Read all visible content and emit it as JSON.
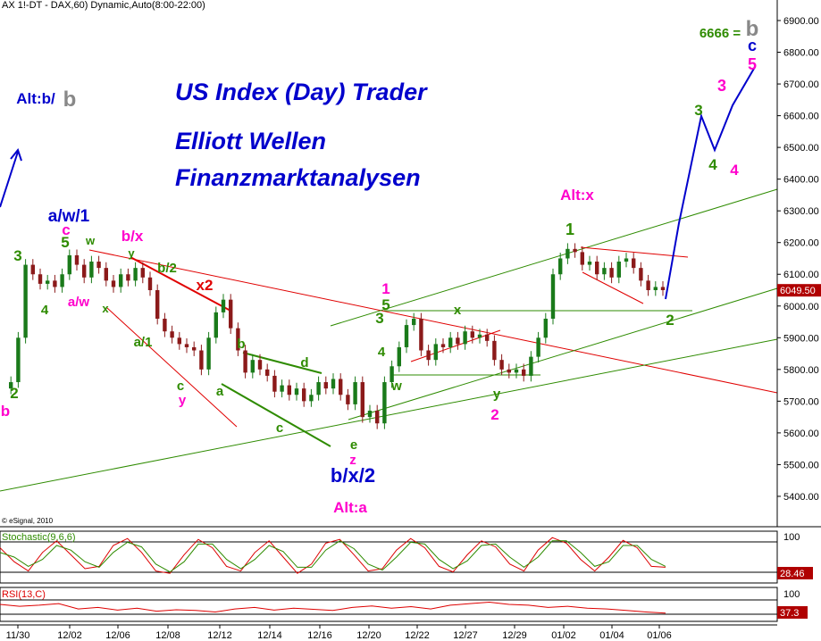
{
  "header": {
    "symbol_line": "AX 1!-DT - DAX,60) Dynamic,Auto(8:00-22:00)"
  },
  "overlay": {
    "title": "US Index (Day) Trader",
    "line2": "Elliott Wellen",
    "line3": "Finanzmarktanalysen"
  },
  "copyright": "© eSignal, 2010",
  "colors": {
    "candle_up": "#1a7a1a",
    "candle_down": "#8b1a1a",
    "blue": "#0000cc",
    "green": "#2e8b00",
    "magenta": "#ff00cc",
    "red": "#e00000",
    "black": "#000000",
    "grey": "#888888"
  },
  "chart_data": [
    {
      "type": "candlestick",
      "title": "",
      "instrument": "DAX",
      "interval": "60",
      "ylim": [
        5300,
        6950
      ],
      "yticks": [
        "6900.00",
        "6800.00",
        "6700.00",
        "6600.00",
        "6500.00",
        "6400.00",
        "6300.00",
        "6200.00",
        "6100.00",
        "6000.00",
        "5900.00",
        "5800.00",
        "5700.00",
        "5600.00",
        "5500.00",
        "5400.00"
      ],
      "xticks": [
        "11/30",
        "12/02",
        "12/06",
        "12/08",
        "12/12",
        "12/14",
        "12/16",
        "12/20",
        "12/22",
        "12/27",
        "12/29",
        "01/02",
        "01/04",
        "01/06"
      ],
      "last_price": "6049.50",
      "price_path": [
        [
          0,
          5740
        ],
        [
          1,
          5760
        ],
        [
          2,
          5900
        ],
        [
          3,
          6130
        ],
        [
          4,
          6100
        ],
        [
          5,
          6070
        ],
        [
          6,
          6080
        ],
        [
          7,
          6060
        ],
        [
          8,
          6100
        ],
        [
          9,
          6160
        ],
        [
          10,
          6130
        ],
        [
          11,
          6090
        ],
        [
          12,
          6140
        ],
        [
          13,
          6120
        ],
        [
          14,
          6080
        ],
        [
          15,
          6060
        ],
        [
          16,
          6100
        ],
        [
          17,
          6080
        ],
        [
          18,
          6120
        ],
        [
          19,
          6090
        ],
        [
          20,
          6050
        ],
        [
          21,
          5960
        ],
        [
          22,
          5920
        ],
        [
          23,
          5900
        ],
        [
          24,
          5880
        ],
        [
          25,
          5870
        ],
        [
          26,
          5860
        ],
        [
          27,
          5800
        ],
        [
          28,
          5900
        ],
        [
          29,
          5980
        ],
        [
          30,
          6020
        ],
        [
          31,
          5930
        ],
        [
          32,
          5860
        ],
        [
          33,
          5790
        ],
        [
          34,
          5830
        ],
        [
          35,
          5800
        ],
        [
          36,
          5780
        ],
        [
          37,
          5730
        ],
        [
          38,
          5750
        ],
        [
          39,
          5720
        ],
        [
          40,
          5740
        ],
        [
          41,
          5700
        ],
        [
          42,
          5720
        ],
        [
          43,
          5760
        ],
        [
          44,
          5740
        ],
        [
          45,
          5770
        ],
        [
          46,
          5720
        ],
        [
          47,
          5690
        ],
        [
          48,
          5760
        ],
        [
          49,
          5650
        ],
        [
          50,
          5670
        ],
        [
          51,
          5630
        ],
        [
          52,
          5760
        ],
        [
          53,
          5810
        ],
        [
          54,
          5870
        ],
        [
          55,
          5940
        ],
        [
          56,
          5960
        ],
        [
          57,
          5860
        ],
        [
          58,
          5830
        ],
        [
          59,
          5880
        ],
        [
          60,
          5870
        ],
        [
          61,
          5900
        ],
        [
          62,
          5880
        ],
        [
          63,
          5920
        ],
        [
          64,
          5900
        ],
        [
          65,
          5910
        ],
        [
          66,
          5890
        ],
        [
          67,
          5830
        ],
        [
          68,
          5800
        ],
        [
          69,
          5790
        ],
        [
          70,
          5800
        ],
        [
          71,
          5780
        ],
        [
          72,
          5840
        ],
        [
          73,
          5900
        ],
        [
          74,
          5960
        ],
        [
          75,
          6100
        ],
        [
          76,
          6150
        ],
        [
          77,
          6180
        ],
        [
          78,
          6170
        ],
        [
          79,
          6130
        ],
        [
          80,
          6140
        ],
        [
          81,
          6100
        ],
        [
          82,
          6120
        ],
        [
          83,
          6090
        ],
        [
          84,
          6140
        ],
        [
          85,
          6150
        ],
        [
          86,
          6120
        ],
        [
          87,
          6080
        ],
        [
          88,
          6050
        ],
        [
          89,
          6060
        ],
        [
          90,
          6050
        ]
      ],
      "wave_labels": [
        {
          "text": "a/w/1",
          "color": "blue"
        },
        {
          "text": "c",
          "color": "magenta"
        },
        {
          "text": "5",
          "color": "green"
        },
        {
          "text": "w",
          "color": "green"
        },
        {
          "text": "b/x",
          "color": "magenta"
        },
        {
          "text": "y",
          "color": "green"
        },
        {
          "text": "b/2",
          "color": "green"
        },
        {
          "text": "x2",
          "color": "red"
        },
        {
          "text": "3",
          "color": "green"
        },
        {
          "text": "4",
          "color": "green"
        },
        {
          "text": "a/w",
          "color": "magenta"
        },
        {
          "text": "x",
          "color": "green"
        },
        {
          "text": "a/1",
          "color": "green"
        },
        {
          "text": "c",
          "color": "green"
        },
        {
          "text": "y",
          "color": "magenta"
        },
        {
          "text": "a",
          "color": "green"
        },
        {
          "text": "b",
          "color": "green"
        },
        {
          "text": "d",
          "color": "green"
        },
        {
          "text": "c",
          "color": "green"
        },
        {
          "text": "e",
          "color": "green"
        },
        {
          "text": "z",
          "color": "magenta"
        },
        {
          "text": "b/x/2",
          "color": "blue"
        },
        {
          "text": "Alt:a",
          "color": "magenta"
        },
        {
          "text": "Alt:b/",
          "color": "blue"
        },
        {
          "text": "b",
          "color": "grey"
        },
        {
          "text": "1",
          "color": "magenta"
        },
        {
          "text": "5",
          "color": "green"
        },
        {
          "text": "3",
          "color": "green"
        },
        {
          "text": "4",
          "color": "green"
        },
        {
          "text": "w",
          "color": "green"
        },
        {
          "text": "x",
          "color": "green"
        },
        {
          "text": "y",
          "color": "green"
        },
        {
          "text": "2",
          "color": "magenta"
        },
        {
          "text": "Alt:x",
          "color": "magenta"
        },
        {
          "text": "6666 =",
          "color": "green"
        },
        {
          "text": "b",
          "color": "grey"
        },
        {
          "text": "c",
          "color": "blue"
        },
        {
          "text": "5",
          "color": "magenta"
        },
        {
          "text": "3",
          "color": "magenta"
        },
        {
          "text": "4",
          "color": "magenta"
        },
        {
          "text": "3",
          "color": "green"
        },
        {
          "text": "4",
          "color": "green"
        },
        {
          "text": "2",
          "color": "green"
        },
        {
          "text": "1",
          "color": "green"
        },
        {
          "text": "b",
          "color": "magenta"
        },
        {
          "text": "2",
          "color": "green"
        }
      ]
    },
    {
      "type": "line",
      "name": "Stochastic(9,6,6)",
      "title": "Stochastic(9,6,6)",
      "yticks": [
        "100"
      ],
      "last_value": "28.46",
      "series": [
        {
          "name": "%K",
          "values": [
            70,
            40,
            20,
            60,
            85,
            55,
            25,
            30,
            75,
            90,
            60,
            20,
            15,
            55,
            88,
            70,
            30,
            20,
            60,
            85,
            50,
            15,
            35,
            80,
            88,
            55,
            20,
            25,
            65,
            90,
            70,
            30,
            18,
            55,
            85,
            72,
            35,
            20,
            65,
            92,
            80,
            45,
            20,
            50,
            86,
            70,
            30,
            28
          ]
        },
        {
          "name": "%D",
          "values": [
            60,
            50,
            30,
            45,
            75,
            65,
            40,
            28,
            60,
            82,
            72,
            35,
            18,
            40,
            78,
            78,
            45,
            25,
            45,
            75,
            62,
            28,
            28,
            65,
            85,
            68,
            35,
            22,
            50,
            82,
            78,
            45,
            25,
            42,
            75,
            78,
            50,
            28,
            50,
            85,
            85,
            60,
            30,
            40,
            75,
            75,
            45,
            30
          ]
        }
      ]
    },
    {
      "type": "line",
      "name": "RSI(13,C)",
      "title": "RSI(13,C)",
      "yticks": [
        "100"
      ],
      "last_value": "37.3",
      "series": [
        {
          "name": "RSI",
          "values": [
            60,
            55,
            58,
            62,
            48,
            52,
            45,
            50,
            42,
            46,
            44,
            40,
            48,
            52,
            45,
            50,
            47,
            44,
            52,
            56,
            50,
            54,
            48,
            58,
            62,
            66,
            60,
            58,
            52,
            55,
            50,
            48,
            44,
            40,
            37
          ]
        }
      ]
    }
  ]
}
